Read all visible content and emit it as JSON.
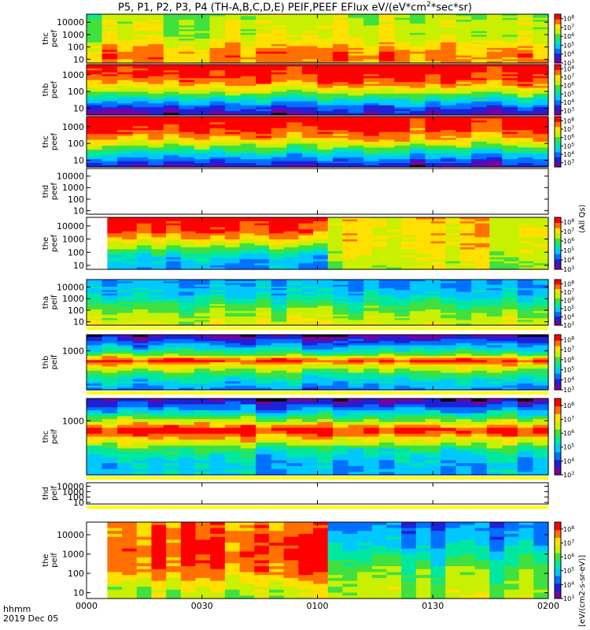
{
  "title_text": "P5, P1, P2, P3, P4 (TH-A,B,C,D,E) PEIF,PEEF EFlux eV/(eV*cm",
  "title_sup": "2",
  "title_tail": "*sec*sr)",
  "colors": {
    "scale": [
      "#7a00a0",
      "#2020d8",
      "#0070ff",
      "#00c8ff",
      "#00e8a0",
      "#40e040",
      "#c8f000",
      "#ffe000",
      "#ff7000",
      "#ff0000"
    ],
    "under": "#000000",
    "fill": "#ffff00"
  },
  "chart_data": {
    "type": "heatmap",
    "x_axis": {
      "ticks": [
        "0000",
        "0030",
        "0100",
        "0130",
        "0200"
      ],
      "label_line1": "hhmm",
      "label_line2": "2019 Dec 05"
    },
    "cbar_titles": [
      "(All Qs)",
      "[eV/(cm2-s-sr-eV)]"
    ],
    "panels": [
      {
        "ylabel": [
          "thc",
          "peef"
        ],
        "ylog": [
          5,
          45000
        ],
        "yticks": [
          "10",
          "100",
          "1000",
          "10000"
        ],
        "cbar_ticks": [
          "10",
          "10",
          "10",
          "10",
          "10",
          "10"
        ],
        "cbar_exps": [
          "3",
          "4",
          "5",
          "6",
          "7",
          "8"
        ],
        "cbar_range": [
          3,
          8.5
        ],
        "blank_start_frac": 0,
        "cols": 30,
        "levels": [
          [
            0,
            6.3
          ],
          [
            0.2,
            6.6
          ],
          [
            0.4,
            6.5
          ],
          [
            0.6,
            7.0
          ],
          [
            0.8,
            7.6
          ],
          [
            1.0,
            7.3
          ]
        ]
      },
      {
        "ylabel": [
          "thb",
          "peef"
        ],
        "ylog": [
          4,
          4000
        ],
        "yticks": [
          "10",
          "100",
          "1000"
        ],
        "cbar_ticks": [
          "10",
          "10",
          "10",
          "10",
          "10",
          "10"
        ],
        "cbar_exps": [
          "3",
          "4",
          "5",
          "6",
          "7",
          "8"
        ],
        "cbar_range": [
          2.5,
          8.5
        ],
        "blank_start_frac": 0,
        "cols": 30,
        "levels": [
          [
            0,
            8.4
          ],
          [
            0.25,
            8.0
          ],
          [
            0.45,
            7.0
          ],
          [
            0.65,
            5.2
          ],
          [
            0.85,
            3.6
          ],
          [
            1.0,
            3.0
          ]
        ]
      },
      {
        "ylabel": [
          "thc",
          "peef"
        ],
        "ylog": [
          4,
          4000
        ],
        "yticks": [
          "10",
          "100",
          "1000"
        ],
        "cbar_ticks": [
          "10",
          "10",
          "10",
          "10",
          "10",
          "10"
        ],
        "cbar_exps": [
          "3",
          "4",
          "5",
          "6",
          "7",
          "8"
        ],
        "cbar_range": [
          2.5,
          8.5
        ],
        "blank_start_frac": 0,
        "cols": 30,
        "levels": [
          [
            0,
            8.4
          ],
          [
            0.22,
            8.0
          ],
          [
            0.45,
            7.0
          ],
          [
            0.65,
            5.3
          ],
          [
            0.85,
            3.8
          ],
          [
            1.0,
            2.8
          ]
        ]
      },
      {
        "ylabel": [
          "thd",
          "peef"
        ],
        "ylog": [
          5,
          45000
        ],
        "yticks": [
          "10",
          "100",
          "1000",
          "10000"
        ],
        "cbar_ticks": [],
        "cbar_exps": [],
        "cbar_range": [
          3,
          8
        ],
        "blank": true
      },
      {
        "ylabel": [
          "the",
          "peef"
        ],
        "ylog": [
          5,
          45000
        ],
        "yticks": [
          "10",
          "100",
          "1000",
          "10000"
        ],
        "cbar_ticks": [
          "10",
          "10",
          "10",
          "10",
          "10",
          "10"
        ],
        "cbar_exps": [
          "3",
          "4",
          "5",
          "6",
          "7",
          "8"
        ],
        "cbar_range": [
          3,
          8.5
        ],
        "blank_start_frac": 0.045,
        "cols": 30,
        "levels": [
          [
            0,
            8.3
          ],
          [
            0.25,
            8.0
          ],
          [
            0.5,
            6.5
          ],
          [
            0.75,
            5.0
          ],
          [
            1.0,
            4.6
          ]
        ],
        "alt_levels": [
          [
            0,
            7.0
          ],
          [
            0.5,
            7.0
          ],
          [
            1.0,
            6.4
          ]
        ],
        "alt_from_frac": 0.48,
        "alt_cols": [
          5
        ]
      },
      {
        "ylabel": [
          "tha",
          "peif"
        ],
        "ylog": [
          5,
          45000
        ],
        "yticks": [
          "10",
          "100",
          "1000",
          "10000"
        ],
        "cbar_ticks": [
          "10",
          "10",
          "10",
          "10",
          "10",
          "10"
        ],
        "cbar_exps": [
          "3",
          "4",
          "5",
          "6",
          "7",
          "8"
        ],
        "cbar_range": [
          3,
          8.5
        ],
        "blank_start_frac": 0,
        "cols": 30,
        "fill_bottom": true,
        "levels": [
          [
            0,
            4.6
          ],
          [
            0.3,
            5.0
          ],
          [
            0.55,
            5.8
          ],
          [
            0.8,
            6.5
          ],
          [
            1.0,
            6.7
          ]
        ]
      },
      {
        "ylabel": [
          "thb",
          "peif"
        ],
        "ylog": [
          20,
          5000
        ],
        "yticks": [
          "1000"
        ],
        "cbar_ticks": [
          "10",
          "10",
          "10",
          "10",
          "10",
          "10"
        ],
        "cbar_exps": [
          "3",
          "4",
          "5",
          "6",
          "7",
          "8"
        ],
        "cbar_range": [
          3,
          8.5
        ],
        "blank_start_frac": 0,
        "cols": 30,
        "fill_bottom": true,
        "levels": [
          [
            0,
            3.4
          ],
          [
            0.2,
            4.8
          ],
          [
            0.35,
            6.2
          ],
          [
            0.45,
            8.2
          ],
          [
            0.55,
            7.0
          ],
          [
            0.7,
            5.8
          ],
          [
            0.85,
            5.0
          ],
          [
            1.0,
            4.4
          ]
        ]
      },
      {
        "ylabel": [
          "thc",
          "peif"
        ],
        "ylog": [
          20,
          5000
        ],
        "yticks": [
          "1000"
        ],
        "cbar_ticks": [
          "10",
          "10",
          "10",
          "10",
          "10",
          "10"
        ],
        "cbar_exps": [
          "3",
          "4",
          "5",
          "6",
          "7",
          "8"
        ],
        "cbar_range": [
          3,
          8.5
        ],
        "blank_start_frac": 0,
        "cols": 30,
        "fill_bottom": true,
        "levels": [
          [
            0,
            3.4
          ],
          [
            0.12,
            4.5
          ],
          [
            0.28,
            6.5
          ],
          [
            0.4,
            8.3
          ],
          [
            0.5,
            7.2
          ],
          [
            0.65,
            5.6
          ],
          [
            0.82,
            4.9
          ],
          [
            1.0,
            4.8
          ]
        ]
      },
      {
        "ylabel": [
          "thd",
          "peif"
        ],
        "ylog": [
          5,
          45000
        ],
        "yticks": [
          "10",
          "100",
          "1000",
          "10000"
        ],
        "cbar_ticks": [],
        "cbar_exps": [],
        "cbar_range": [
          3,
          8
        ],
        "blank": true,
        "fill_bottom": true
      },
      {
        "ylabel": [
          "the",
          "peif"
        ],
        "ylog": [
          5,
          45000
        ],
        "yticks": [
          "10",
          "100",
          "1000",
          "10000"
        ],
        "cbar_ticks": [
          "10",
          "10",
          "10",
          "10",
          "10",
          "10"
        ],
        "cbar_exps": [
          "3",
          "4",
          "5",
          "6",
          "7",
          "8"
        ],
        "cbar_range": [
          3,
          8.5
        ],
        "blank_start_frac": 0.045,
        "cols": 30,
        "levels": [
          [
            0,
            7.6
          ],
          [
            0.35,
            8.0
          ],
          [
            0.65,
            7.6
          ],
          [
            0.85,
            6.6
          ],
          [
            1.0,
            6.4
          ]
        ],
        "alt_levels": [
          [
            0,
            4.2
          ],
          [
            0.3,
            5.0
          ],
          [
            0.6,
            6.0
          ],
          [
            1.0,
            6.5
          ]
        ],
        "alt_from_frac": 0.5,
        "alt_cols": [
          5
        ]
      }
    ]
  }
}
